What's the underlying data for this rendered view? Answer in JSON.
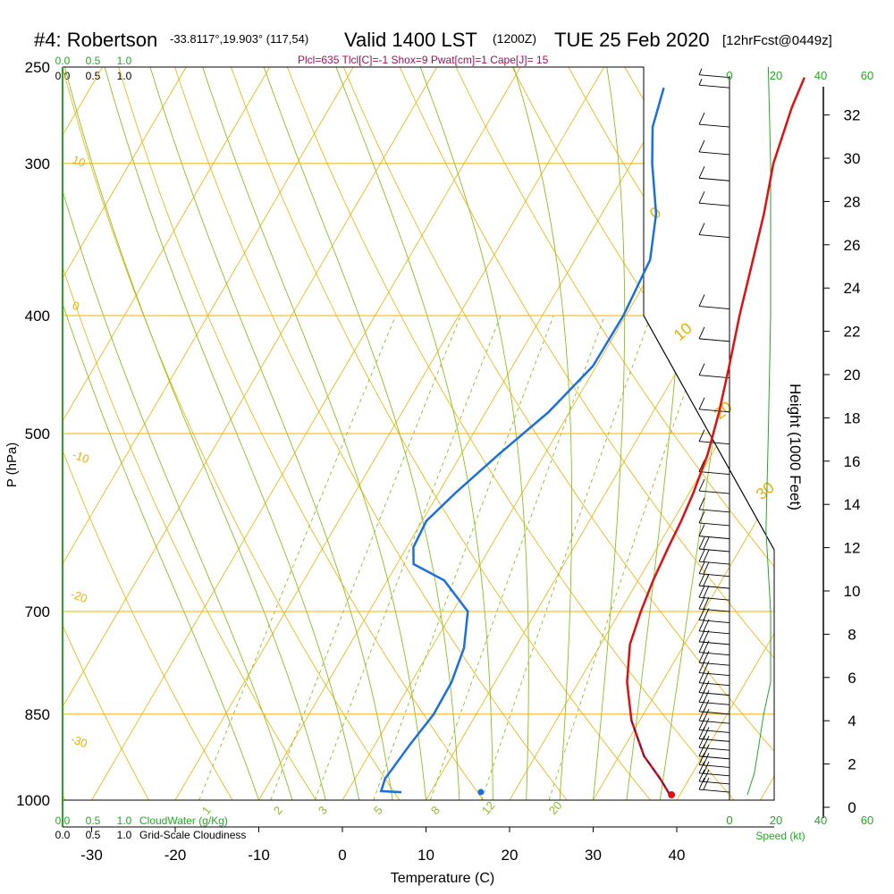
{
  "header": {
    "station": "#4: Robertson",
    "coords": "-33.8117°,19.903° (117,54)",
    "valid": "Valid 1400 LST",
    "z": "(1200Z)",
    "date": "TUE 25 Feb 2020",
    "fcst": "[12hrFcst@0449z]",
    "indices": "Plcl=635 Tlcl[C]=-1 Shox=9 Pwat[cm]=1 Cape[J]= 15"
  },
  "colors": {
    "temperature": "#e01010",
    "dewpoint": "#1a6fe0",
    "isotherm_dry_adiabat": "#f0b000",
    "moist_adiabat_mixing": "#88c020",
    "green_label": "#22aa22",
    "index_text": "#a0105a"
  },
  "chart_data": {
    "type": "line",
    "title": "#4: Robertson  Valid 1400 LST (1200Z) TUE 25 Feb 2020",
    "xlabel": "Temperature (C)",
    "ylabel": "P (hPa)",
    "right_axis_label": "Height (1000 Feet)",
    "x_ticks": [
      "-30",
      "-20",
      "-10",
      "0",
      "10",
      "20",
      "30",
      "40"
    ],
    "p_ticks": [
      "250",
      "300",
      "400",
      "500",
      "700",
      "850",
      "1000"
    ],
    "height_ticks": [
      "0",
      "2",
      "4",
      "6",
      "8",
      "10",
      "12",
      "14",
      "16",
      "18",
      "20",
      "22",
      "24",
      "26",
      "28",
      "30",
      "32"
    ],
    "isotherm_labels": [
      "10",
      "0",
      "-10",
      "-20",
      "-30",
      "0",
      "10",
      "20",
      "30"
    ],
    "mixing_ratio_labels": [
      "1",
      "2",
      "3",
      "5",
      "8",
      "12",
      "20"
    ],
    "cloud_scale_top": [
      "0.0",
      "0.5",
      "1.0"
    ],
    "cloud_scale_top2": [
      "0.0",
      "0.5",
      "1.0"
    ],
    "cloud_scale_bottom": [
      "0.0",
      "0.5",
      "1.0",
      "CloudWater (g/Kg)"
    ],
    "cloud_scale_bottom2": [
      "0.0",
      "0.5",
      "1.0",
      "Grid-Scale Cloudiness"
    ],
    "speed_ticks_top": [
      "0",
      "20",
      "40",
      "60"
    ],
    "speed_ticks_bottom": [
      "0",
      "20",
      "40",
      "60"
    ],
    "speed_label": "Speed (kt)",
    "temperature_profile": [
      [
        38.8,
        990
      ],
      [
        36.5,
        960
      ],
      [
        33,
        920
      ],
      [
        29,
        860
      ],
      [
        25.8,
        800
      ],
      [
        23.5,
        745
      ],
      [
        22.5,
        700
      ],
      [
        21.8,
        660
      ],
      [
        21.3,
        620
      ],
      [
        21,
        590
      ],
      [
        20.5,
        560
      ],
      [
        19.5,
        520
      ],
      [
        17.9,
        480
      ],
      [
        15.9,
        440
      ],
      [
        13.6,
        400
      ],
      [
        11.3,
        360
      ],
      [
        9.4,
        330
      ],
      [
        7,
        300
      ],
      [
        5.3,
        270
      ],
      [
        4.7,
        255
      ]
    ],
    "dewpoint_profile": [
      [
        6.5,
        985
      ],
      [
        4,
        983
      ],
      [
        3.6,
        960
      ],
      [
        4.2,
        900
      ],
      [
        4.9,
        850
      ],
      [
        4.8,
        800
      ],
      [
        3.9,
        750
      ],
      [
        1.8,
        700
      ],
      [
        -3.2,
        660
      ],
      [
        -8,
        640
      ],
      [
        -9.2,
        620
      ],
      [
        -9.5,
        590
      ],
      [
        -8,
        560
      ],
      [
        -5.5,
        520
      ],
      [
        -2.5,
        480
      ],
      [
        -0.4,
        440
      ],
      [
        -0.3,
        400
      ],
      [
        -1,
        360
      ],
      [
        -3.5,
        330
      ],
      [
        -7.5,
        300
      ],
      [
        -10,
        280
      ],
      [
        -11.4,
        260
      ]
    ],
    "surface_dewpoint_marker": [
      16,
      985
    ],
    "surface_temperature_marker": [
      39,
      990
    ],
    "wind_speed_profile_kt": [
      [
        0,
        990
      ],
      [
        3,
        950
      ],
      [
        5,
        900
      ],
      [
        7,
        850
      ],
      [
        10,
        800
      ],
      [
        10,
        700
      ],
      [
        8,
        600
      ],
      [
        9,
        500
      ],
      [
        10,
        400
      ],
      [
        10,
        300
      ],
      [
        9,
        250
      ]
    ],
    "wind_barbs_kt": [
      {
        "p": 985,
        "spd": 20
      },
      {
        "p": 970,
        "spd": 20
      },
      {
        "p": 955,
        "spd": 20
      },
      {
        "p": 940,
        "spd": 20
      },
      {
        "p": 925,
        "spd": 20
      },
      {
        "p": 910,
        "spd": 20
      },
      {
        "p": 895,
        "spd": 20
      },
      {
        "p": 880,
        "spd": 20
      },
      {
        "p": 865,
        "spd": 20
      },
      {
        "p": 850,
        "spd": 20
      },
      {
        "p": 835,
        "spd": 20
      },
      {
        "p": 820,
        "spd": 20
      },
      {
        "p": 805,
        "spd": 20
      },
      {
        "p": 790,
        "spd": 20
      },
      {
        "p": 775,
        "spd": 20
      },
      {
        "p": 760,
        "spd": 20
      },
      {
        "p": 745,
        "spd": 20
      },
      {
        "p": 730,
        "spd": 20
      },
      {
        "p": 715,
        "spd": 20
      },
      {
        "p": 700,
        "spd": 20
      },
      {
        "p": 685,
        "spd": 20
      },
      {
        "p": 670,
        "spd": 20
      },
      {
        "p": 655,
        "spd": 20
      },
      {
        "p": 640,
        "spd": 20
      },
      {
        "p": 625,
        "spd": 20
      },
      {
        "p": 610,
        "spd": 10
      },
      {
        "p": 595,
        "spd": 10
      },
      {
        "p": 580,
        "spd": 10
      },
      {
        "p": 560,
        "spd": 10
      },
      {
        "p": 540,
        "spd": 10
      },
      {
        "p": 510,
        "spd": 10
      },
      {
        "p": 480,
        "spd": 10
      },
      {
        "p": 450,
        "spd": 10
      },
      {
        "p": 420,
        "spd": 10
      },
      {
        "p": 395,
        "spd": 10
      },
      {
        "p": 345,
        "spd": 10
      },
      {
        "p": 325,
        "spd": 10
      },
      {
        "p": 310,
        "spd": 10
      },
      {
        "p": 295,
        "spd": 10
      },
      {
        "p": 280,
        "spd": 10
      },
      {
        "p": 260,
        "spd": 5
      },
      {
        "p": 255,
        "spd": 5
      }
    ]
  }
}
